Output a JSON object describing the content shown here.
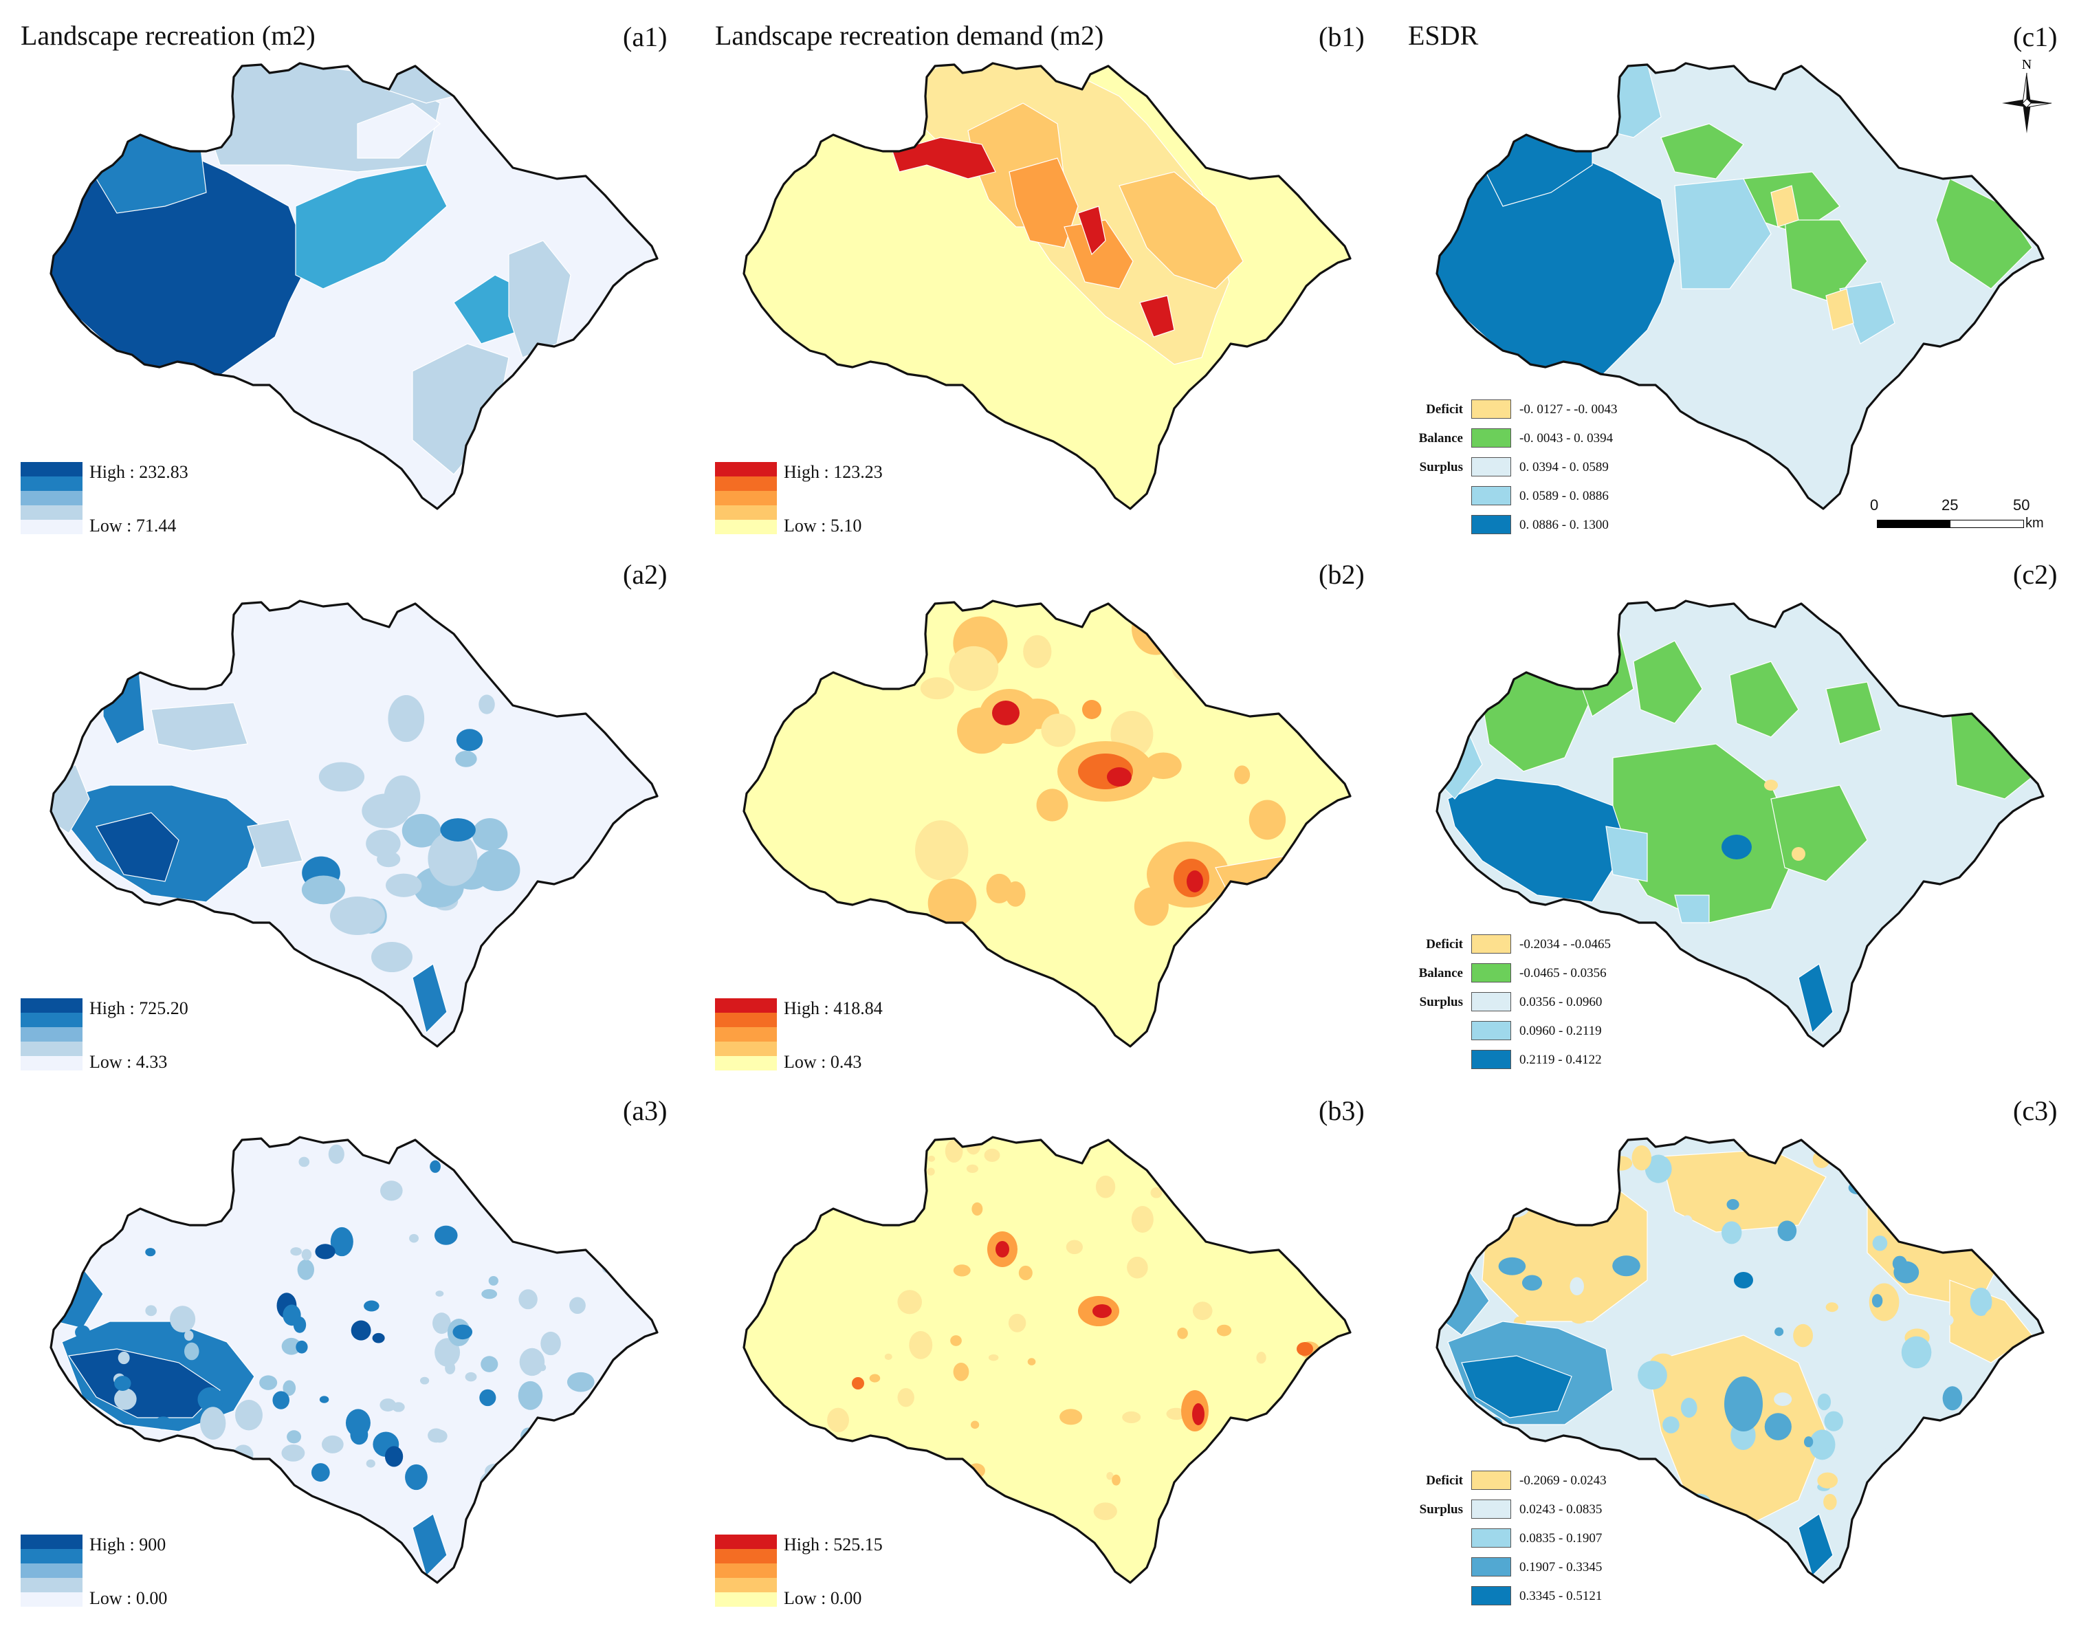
{
  "columns": [
    {
      "title": "Landscape recreation (m2)"
    },
    {
      "title": "Landscape recreation demand (m2)"
    },
    {
      "title": "ESDR"
    }
  ],
  "colors": {
    "supply_ramp": [
      "#f0f4fd",
      "#bcd6e8",
      "#9ac7e1",
      "#3aa9d6",
      "#0a7cba",
      "#08519c"
    ],
    "demand_ramp": [
      "#ffffb0",
      "#fee89a",
      "#fec86a",
      "#fda042",
      "#f46d23",
      "#d7191c"
    ],
    "deficit": "#fde08e",
    "balance": "#6ccf5a",
    "surplus_1": "#dcedf4",
    "surplus_2": "#9fd8eb",
    "surplus_3": "#0a7cba"
  },
  "panels": {
    "a1": {
      "tag": "(a1)",
      "high": "High : 232.83",
      "low": "Low : 71.44"
    },
    "a2": {
      "tag": "(a2)",
      "high": "High : 725.20",
      "low": "Low : 4.33"
    },
    "a3": {
      "tag": "(a3)",
      "high": "High : 900",
      "low": "Low : 0.00"
    },
    "b1": {
      "tag": "(b1)",
      "high": "High : 123.23",
      "low": "Low : 5.10"
    },
    "b2": {
      "tag": "(b2)",
      "high": "High : 418.84",
      "low": "Low : 0.43"
    },
    "b3": {
      "tag": "(b3)",
      "high": "High : 525.15",
      "low": "Low : 0.00"
    },
    "c1": {
      "tag": "(c1)",
      "classes": [
        {
          "group": "Deficit",
          "range": "-0. 0127 - -0. 0043",
          "color": "#fde08e"
        },
        {
          "group": "Balance",
          "range": "-0. 0043 - 0. 0394",
          "color": "#6ccf5a"
        },
        {
          "group": "Surplus",
          "range": "0. 0394 - 0. 0589",
          "color": "#dcedf4"
        },
        {
          "group": "",
          "range": "0. 0589 - 0. 0886",
          "color": "#9fd8eb"
        },
        {
          "group": "",
          "range": "0. 0886 - 0. 1300",
          "color": "#0a7cba"
        }
      ]
    },
    "c2": {
      "tag": "(c2)",
      "classes": [
        {
          "group": "Deficit",
          "range": "-0.2034 - -0.0465",
          "color": "#fde08e"
        },
        {
          "group": "Balance",
          "range": "-0.0465 - 0.0356",
          "color": "#6ccf5a"
        },
        {
          "group": "Surplus",
          "range": "0.0356 - 0.0960",
          "color": "#dcedf4"
        },
        {
          "group": "",
          "range": "0.0960 - 0.2119",
          "color": "#9fd8eb"
        },
        {
          "group": "",
          "range": "0.2119 - 0.4122",
          "color": "#0a7cba"
        }
      ]
    },
    "c3": {
      "tag": "(c3)",
      "classes": [
        {
          "group": "Deficit",
          "range": "-0.2069 - 0.0243",
          "color": "#fde08e"
        },
        {
          "group": "Surplus",
          "range": "0.0243 - 0.0835",
          "color": "#dcedf4"
        },
        {
          "group": "",
          "range": "0.0835 - 0.1907",
          "color": "#9fd8eb"
        },
        {
          "group": "",
          "range": "0.1907 - 0.3345",
          "color": "#52a8d2"
        },
        {
          "group": "",
          "range": "0.3345 - 0.5121",
          "color": "#0a7cba"
        }
      ]
    }
  },
  "north_arrow": {
    "label": "N",
    "icon": "north-arrow-icon"
  },
  "scale_bar": {
    "ticks": [
      "0",
      "25",
      "50"
    ],
    "unit": "km"
  }
}
